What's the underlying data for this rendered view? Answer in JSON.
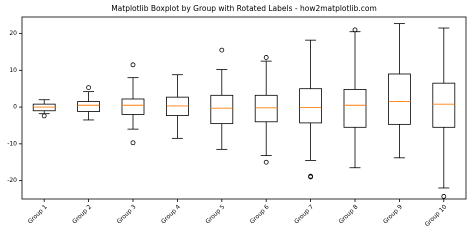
{
  "chart_data": {
    "type": "boxplot",
    "title": "Matplotlib Boxplot by Group with Rotated Labels - how2matplotlib.com",
    "categories": [
      "Group 1",
      "Group 2",
      "Group 3",
      "Group 4",
      "Group 5",
      "Group 6",
      "Group 7",
      "Group 8",
      "Group 9",
      "Group 10"
    ],
    "boxes": [
      {
        "low": -1.8,
        "q1": -1,
        "median": 0,
        "q3": 0.8,
        "high": 2,
        "outliers": [
          -2.4
        ]
      },
      {
        "low": -3.5,
        "q1": -1.2,
        "median": 0.5,
        "q3": 1.5,
        "high": 4.2,
        "outliers": [
          5.3
        ]
      },
      {
        "low": -6,
        "q1": -2,
        "median": 0.5,
        "q3": 2.2,
        "high": 8,
        "outliers": [
          11.5,
          -9.7
        ]
      },
      {
        "low": -8.5,
        "q1": -2.3,
        "median": 0.3,
        "q3": 2.7,
        "high": 8.8,
        "outliers": []
      },
      {
        "low": -11.5,
        "q1": -4.5,
        "median": -0.3,
        "q3": 3.2,
        "high": 10.2,
        "outliers": [
          15.5
        ]
      },
      {
        "low": -13.2,
        "q1": -4,
        "median": -0.2,
        "q3": 3.2,
        "high": 12.5,
        "outliers": [
          13.5,
          -15
        ]
      },
      {
        "low": -14.5,
        "q1": -4.3,
        "median": -0.1,
        "q3": 5,
        "high": 18.2,
        "outliers": [
          -18.8,
          -19
        ]
      },
      {
        "low": -16.5,
        "q1": -5.5,
        "median": 0.5,
        "q3": 4.8,
        "high": 20.5,
        "outliers": [
          21
        ]
      },
      {
        "low": -13.8,
        "q1": -4.7,
        "median": 1.5,
        "q3": 9,
        "high": 22.7,
        "outliers": []
      },
      {
        "low": -22,
        "q1": -5.5,
        "median": 0.8,
        "q3": 6.5,
        "high": 21.5,
        "outliers": [
          -24.3
        ]
      }
    ],
    "box_color": "#000000",
    "median_color": "#ff7f0e",
    "ylim": [
      -25,
      24.5
    ],
    "yticks": [
      -20,
      -10,
      0,
      10,
      20
    ]
  }
}
